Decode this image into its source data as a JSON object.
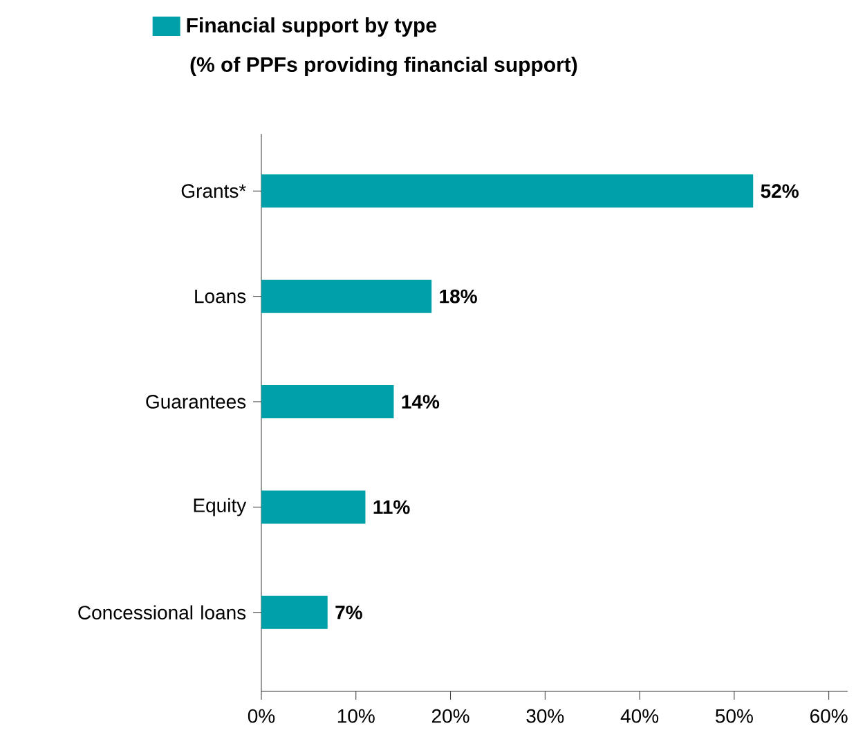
{
  "chart_data": {
    "type": "bar",
    "orientation": "horizontal",
    "subtitle": "(% of PPFs providing financial support)",
    "categories": [
      "Grants*",
      "Loans",
      "Guarantees",
      "Equity",
      "Concessional loans"
    ],
    "series": [
      {
        "name": "Financial support by type",
        "color": "#00a0a8",
        "values": [
          52,
          18,
          14,
          11,
          7
        ],
        "value_labels": [
          "52%",
          "18%",
          "14%",
          "11%",
          "7%"
        ]
      }
    ],
    "xlim": [
      0,
      62
    ],
    "xticks": [
      {
        "value": 0,
        "label": "0%"
      },
      {
        "value": 10,
        "label": "10%"
      },
      {
        "value": 20,
        "label": "20%"
      },
      {
        "value": 30,
        "label": "30%"
      },
      {
        "value": 40,
        "label": "40%"
      },
      {
        "value": 50,
        "label": "50%"
      },
      {
        "value": 60,
        "label": "60%"
      }
    ],
    "legend": "top"
  }
}
